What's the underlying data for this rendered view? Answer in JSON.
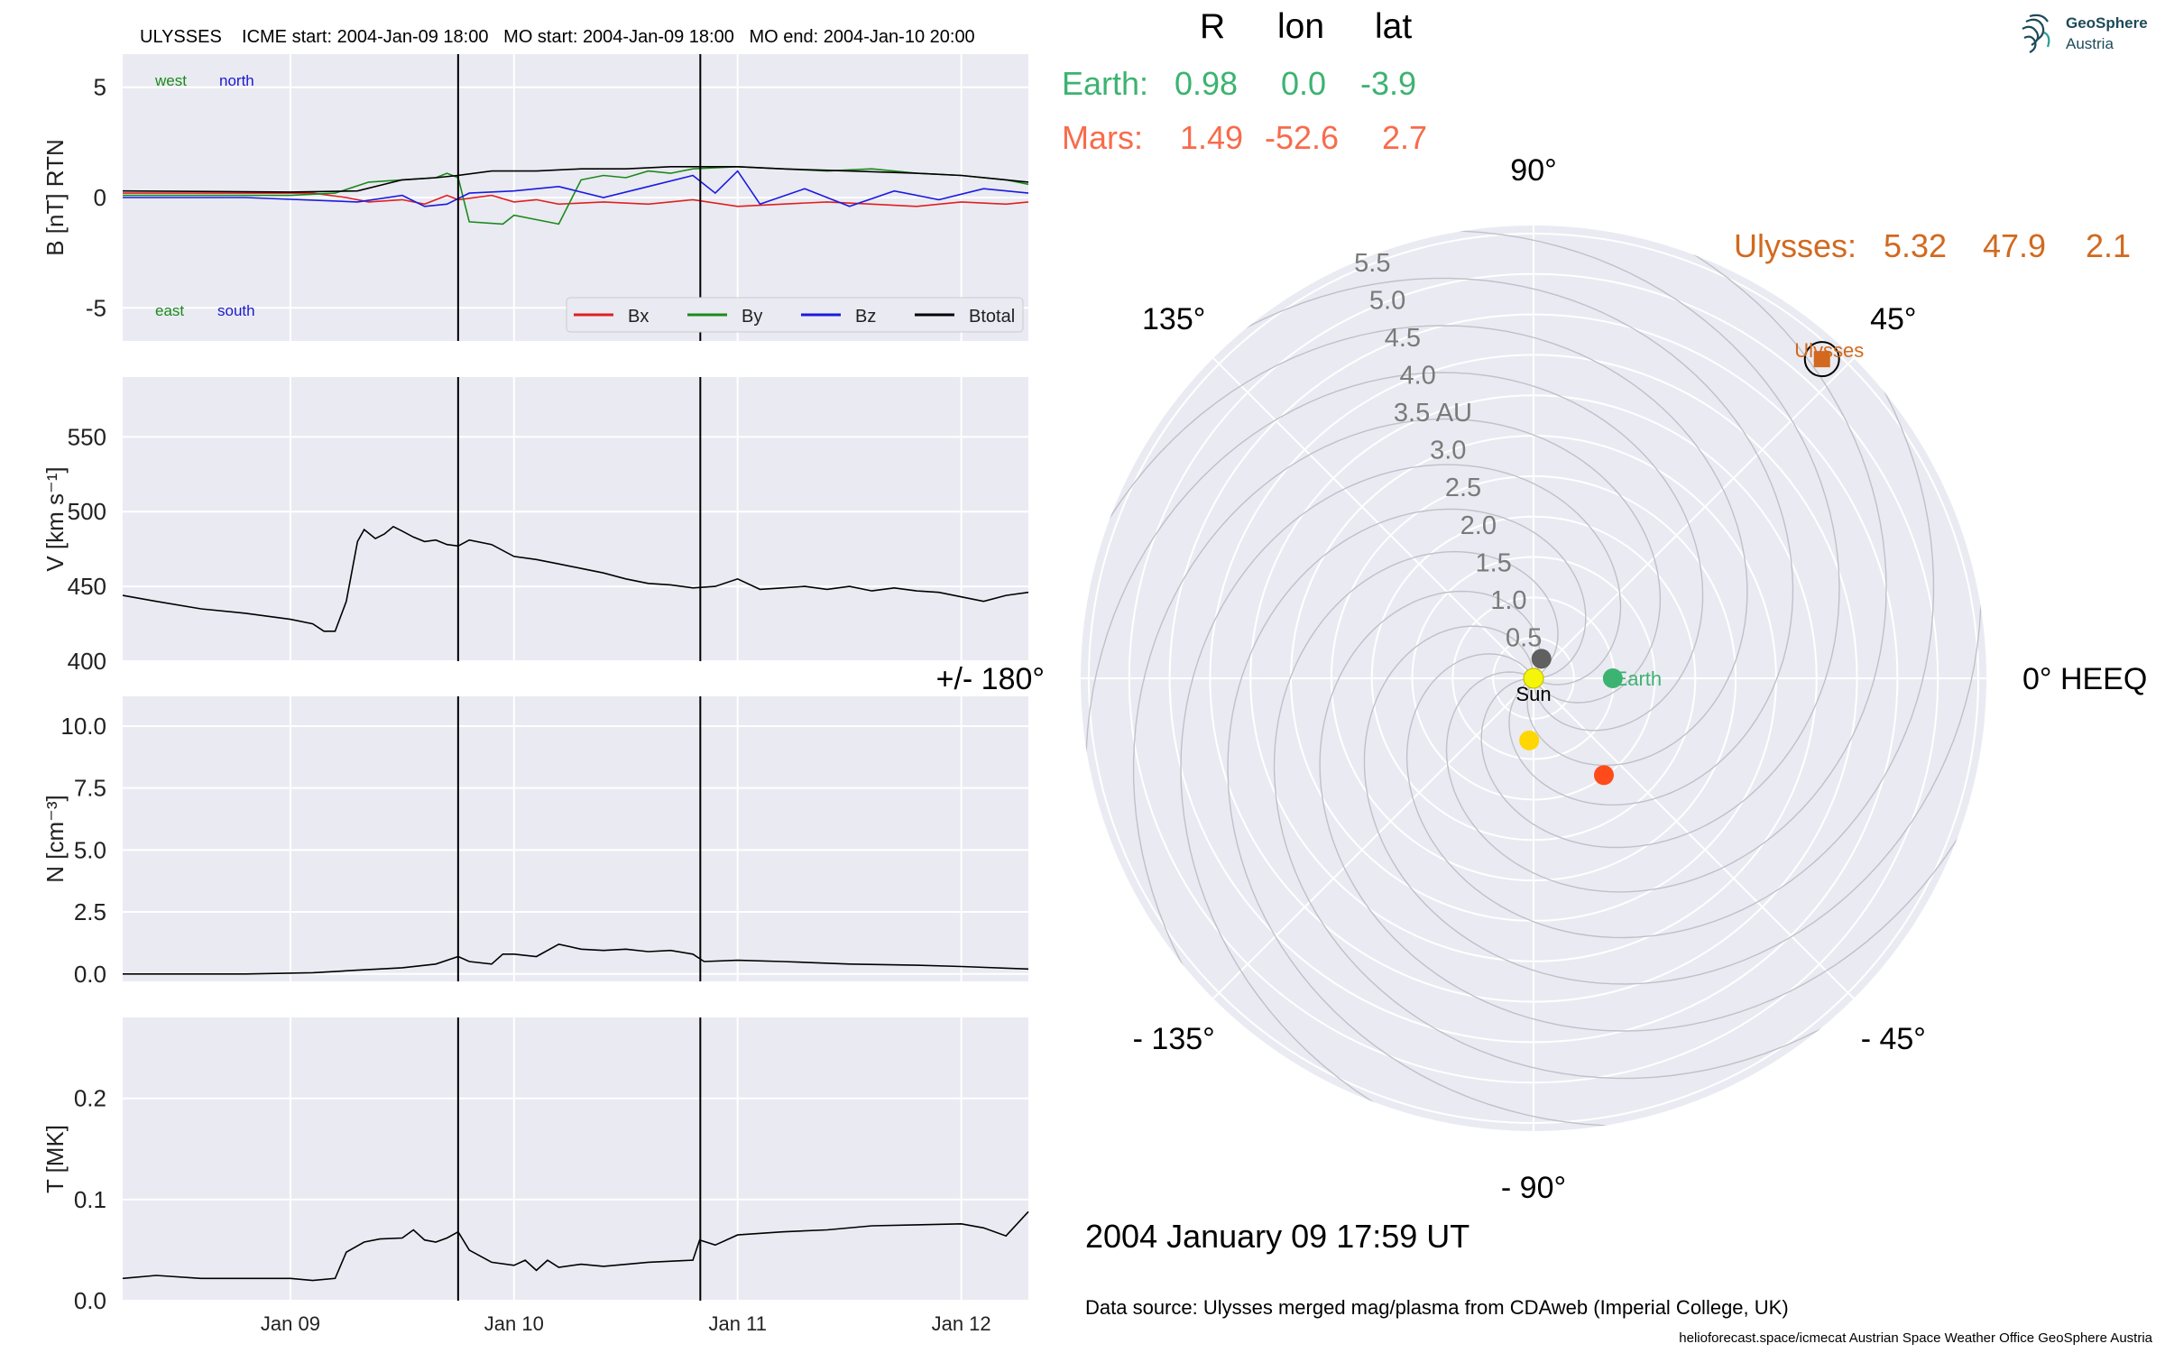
{
  "figure": {
    "timeseries_title": "ULYSSES    ICME start: 2004-Jan-09 18:00   MO start: 2004-Jan-09 18:00   MO end: 2004-Jan-10 20:00",
    "datetime_label": "2004 January 09  17:59 UT",
    "data_source": "Data source: Ulysses merged mag/plasma from CDAweb (Imperial College, UK)",
    "footer": "helioforecast.space/icmecat   Austrian Space Weather Office   GeoSphere Austria",
    "logo_line1": "GeoSphere",
    "logo_line2": "Austria"
  },
  "position_table": {
    "headers": [
      "R",
      "lon",
      "lat"
    ],
    "rows": [
      {
        "name": "Earth:",
        "R": "0.98",
        "lon": "0.0",
        "lat": "-3.9",
        "color": "#3cb371"
      },
      {
        "name": "Mars:",
        "R": "1.49",
        "lon": "-52.6",
        "lat": "2.7",
        "color": "#f86b4b"
      },
      {
        "name": "Ulysses:",
        "R": "5.32",
        "lon": "47.9",
        "lat": "2.1",
        "color": "#d2691e"
      }
    ]
  },
  "chart_data": [
    {
      "type": "line",
      "name": "magnetic_field",
      "ylabel": "B [nT] RTN",
      "ylim": [
        -6.5,
        6.5
      ],
      "yticks": [
        5,
        0,
        -5
      ],
      "xlim": [
        -0.75,
        3.3
      ],
      "xlabel_ticks": [
        "Jan 09",
        "Jan 10",
        "Jan 11",
        "Jan 12"
      ],
      "xtick_days": [
        0,
        1,
        2,
        3
      ],
      "event_lines_days": [
        0.75,
        1.833
      ],
      "corner_labels": [
        {
          "text": "west",
          "color": "#1a8a1a",
          "pos": "top-left"
        },
        {
          "text": "north",
          "color": "#1a1acd",
          "pos": "top-left"
        },
        {
          "text": "east",
          "color": "#1a8a1a",
          "pos": "bottom-left"
        },
        {
          "text": "south",
          "color": "#1a1acd",
          "pos": "bottom-left"
        }
      ],
      "legend_position": "bottom-right",
      "series": [
        {
          "name": "Bx",
          "color": "#e02020",
          "x": [
            -0.75,
            -0.25,
            0.1,
            0.25,
            0.35,
            0.5,
            0.6,
            0.7,
            0.75,
            0.9,
            1.0,
            1.1,
            1.2,
            1.4,
            1.6,
            1.8,
            2.0,
            2.2,
            2.4,
            2.6,
            2.8,
            3.0,
            3.2,
            3.3
          ],
          "y": [
            0.2,
            0.2,
            0.2,
            0.0,
            -0.2,
            -0.1,
            -0.3,
            0.1,
            -0.1,
            0.1,
            -0.2,
            -0.1,
            -0.3,
            -0.2,
            -0.3,
            -0.1,
            -0.4,
            -0.3,
            -0.2,
            -0.3,
            -0.4,
            -0.2,
            -0.3,
            -0.2
          ]
        },
        {
          "name": "By",
          "color": "#1a8a1a",
          "x": [
            -0.75,
            0.0,
            0.2,
            0.35,
            0.5,
            0.65,
            0.7,
            0.75,
            0.8,
            0.95,
            1.0,
            1.1,
            1.2,
            1.3,
            1.4,
            1.5,
            1.6,
            1.7,
            1.8,
            2.0,
            2.2,
            2.4,
            2.6,
            2.8,
            3.0,
            3.2,
            3.3
          ],
          "y": [
            0.1,
            0.1,
            0.2,
            0.7,
            0.8,
            0.9,
            1.1,
            0.9,
            -1.1,
            -1.2,
            -0.8,
            -1.0,
            -1.2,
            0.8,
            1.0,
            0.9,
            1.2,
            1.1,
            1.3,
            1.4,
            1.3,
            1.2,
            1.3,
            1.1,
            1.0,
            0.8,
            0.6
          ]
        },
        {
          "name": "Bz",
          "color": "#1a1ae0",
          "x": [
            -0.75,
            -0.2,
            0.3,
            0.5,
            0.6,
            0.7,
            0.8,
            1.0,
            1.2,
            1.4,
            1.6,
            1.8,
            1.9,
            2.0,
            2.1,
            2.3,
            2.5,
            2.7,
            2.9,
            3.1,
            3.3
          ],
          "y": [
            0.0,
            0.0,
            -0.2,
            0.1,
            -0.4,
            -0.3,
            0.2,
            0.3,
            0.5,
            0.0,
            0.5,
            1.0,
            0.2,
            1.2,
            -0.3,
            0.4,
            -0.4,
            0.3,
            -0.1,
            0.4,
            0.2
          ]
        },
        {
          "name": "Btotal",
          "color": "#000000",
          "x": [
            -0.75,
            0.0,
            0.3,
            0.5,
            0.65,
            0.75,
            0.9,
            1.1,
            1.3,
            1.5,
            1.7,
            1.8,
            2.0,
            2.2,
            2.5,
            2.8,
            3.0,
            3.2,
            3.3
          ],
          "y": [
            0.3,
            0.25,
            0.3,
            0.8,
            0.9,
            1.0,
            1.2,
            1.2,
            1.3,
            1.3,
            1.4,
            1.4,
            1.4,
            1.3,
            1.2,
            1.1,
            1.0,
            0.8,
            0.7
          ]
        }
      ]
    },
    {
      "type": "line",
      "name": "speed",
      "ylabel": "V [km s⁻¹]",
      "ylim": [
        400,
        590
      ],
      "yticks": [
        550,
        500,
        450,
        400
      ],
      "event_lines_days": [
        0.75,
        1.833
      ],
      "series": [
        {
          "name": "V",
          "color": "#000000",
          "x": [
            -0.75,
            -0.6,
            -0.4,
            -0.2,
            0.0,
            0.1,
            0.15,
            0.2,
            0.25,
            0.3,
            0.33,
            0.38,
            0.42,
            0.46,
            0.5,
            0.55,
            0.6,
            0.65,
            0.7,
            0.75,
            0.8,
            0.9,
            1.0,
            1.1,
            1.2,
            1.3,
            1.4,
            1.5,
            1.6,
            1.7,
            1.8,
            1.9,
            2.0,
            2.1,
            2.2,
            2.3,
            2.4,
            2.5,
            2.6,
            2.7,
            2.8,
            2.9,
            3.0,
            3.1,
            3.2,
            3.3
          ],
          "y": [
            444,
            440,
            435,
            432,
            428,
            425,
            420,
            420,
            440,
            480,
            488,
            482,
            485,
            490,
            487,
            483,
            480,
            481,
            478,
            477,
            481,
            478,
            470,
            468,
            465,
            462,
            459,
            455,
            452,
            451,
            449,
            450,
            455,
            448,
            449,
            450,
            448,
            450,
            447,
            449,
            447,
            446,
            443,
            440,
            444,
            446
          ]
        }
      ]
    },
    {
      "type": "line",
      "name": "density",
      "ylabel": "N [cm⁻³]",
      "ylim": [
        -0.3,
        11.2
      ],
      "yticks": [
        10.0,
        7.5,
        5.0,
        2.5,
        0.0
      ],
      "event_lines_days": [
        0.75,
        1.833
      ],
      "series": [
        {
          "name": "N",
          "color": "#000000",
          "x": [
            -0.75,
            -0.2,
            0.1,
            0.3,
            0.5,
            0.65,
            0.75,
            0.8,
            0.9,
            0.95,
            1.0,
            1.1,
            1.2,
            1.3,
            1.4,
            1.5,
            1.6,
            1.7,
            1.8,
            1.85,
            2.0,
            2.2,
            2.5,
            2.8,
            3.0,
            3.3
          ],
          "y": [
            0.0,
            0.0,
            0.05,
            0.15,
            0.25,
            0.4,
            0.7,
            0.5,
            0.4,
            0.8,
            0.8,
            0.7,
            1.2,
            1.0,
            0.95,
            1.0,
            0.9,
            0.95,
            0.8,
            0.5,
            0.55,
            0.5,
            0.4,
            0.35,
            0.3,
            0.2
          ]
        }
      ]
    },
    {
      "type": "line",
      "name": "temperature",
      "ylabel": "T [MK]",
      "ylim": [
        0.0,
        0.28
      ],
      "yticks": [
        0.2,
        0.1,
        0.0
      ],
      "event_lines_days": [
        0.75,
        1.833
      ],
      "series": [
        {
          "name": "T",
          "color": "#000000",
          "x": [
            -0.75,
            -0.6,
            -0.4,
            -0.2,
            0.0,
            0.1,
            0.2,
            0.25,
            0.33,
            0.4,
            0.5,
            0.55,
            0.6,
            0.65,
            0.7,
            0.75,
            0.8,
            0.9,
            1.0,
            1.05,
            1.1,
            1.15,
            1.2,
            1.3,
            1.4,
            1.6,
            1.8,
            1.83,
            1.9,
            2.0,
            2.2,
            2.4,
            2.6,
            2.8,
            3.0,
            3.1,
            3.2,
            3.3
          ],
          "y": [
            0.022,
            0.025,
            0.022,
            0.022,
            0.022,
            0.02,
            0.022,
            0.048,
            0.058,
            0.061,
            0.062,
            0.07,
            0.06,
            0.058,
            0.062,
            0.068,
            0.05,
            0.038,
            0.035,
            0.04,
            0.03,
            0.04,
            0.033,
            0.036,
            0.034,
            0.038,
            0.04,
            0.06,
            0.055,
            0.065,
            0.068,
            0.07,
            0.074,
            0.075,
            0.076,
            0.072,
            0.064,
            0.088
          ]
        }
      ]
    },
    {
      "type": "scatter",
      "name": "polar_position_plot",
      "projection": "polar",
      "rlim": [
        0,
        5.6
      ],
      "rtick_labels": [
        "0.5",
        "1.0",
        "1.5",
        "2.0",
        "2.5",
        "3.0",
        "3.5 AU",
        "4.0",
        "4.5",
        "5.0",
        "5.5"
      ],
      "rticks": [
        0.5,
        1.0,
        1.5,
        2.0,
        2.5,
        3.0,
        3.5,
        4.0,
        4.5,
        5.0,
        5.5
      ],
      "angle_labels": [
        {
          "deg": 0,
          "text": "0° HEEQ"
        },
        {
          "deg": 45,
          "text": "45°"
        },
        {
          "deg": 90,
          "text": "90°"
        },
        {
          "deg": 135,
          "text": "135°"
        },
        {
          "deg": 180,
          "text": "+/- 180°"
        },
        {
          "deg": -135,
          "text": "- 135°"
        },
        {
          "deg": -90,
          "text": "- 90°"
        },
        {
          "deg": -45,
          "text": "- 45°"
        }
      ],
      "bodies": [
        {
          "label": "Sun",
          "r": 0.0,
          "lon": 0,
          "color": "#f5f50a",
          "marker": "circle",
          "labeled": true,
          "label_color": "#000000"
        },
        {
          "label": "Earth",
          "r": 0.98,
          "lon": 0.0,
          "color": "#3cb371",
          "marker": "circle",
          "labeled": true,
          "label_color": "#3cb371"
        },
        {
          "label": "",
          "r": 0.26,
          "lon": 68,
          "color": "#606060",
          "marker": "circle",
          "labeled": false
        },
        {
          "label": "",
          "r": 0.77,
          "lon": -94,
          "color": "#ffd700",
          "marker": "circle",
          "labeled": false
        },
        {
          "label": "",
          "r": 1.48,
          "lon": -54,
          "color": "#ff4a1a",
          "marker": "circle",
          "labeled": false
        },
        {
          "label": "Ulysses",
          "r": 5.32,
          "lon": 47.9,
          "color": "#d2691e",
          "marker": "square",
          "labeled": true,
          "label_color": "#d2691e"
        }
      ]
    }
  ]
}
